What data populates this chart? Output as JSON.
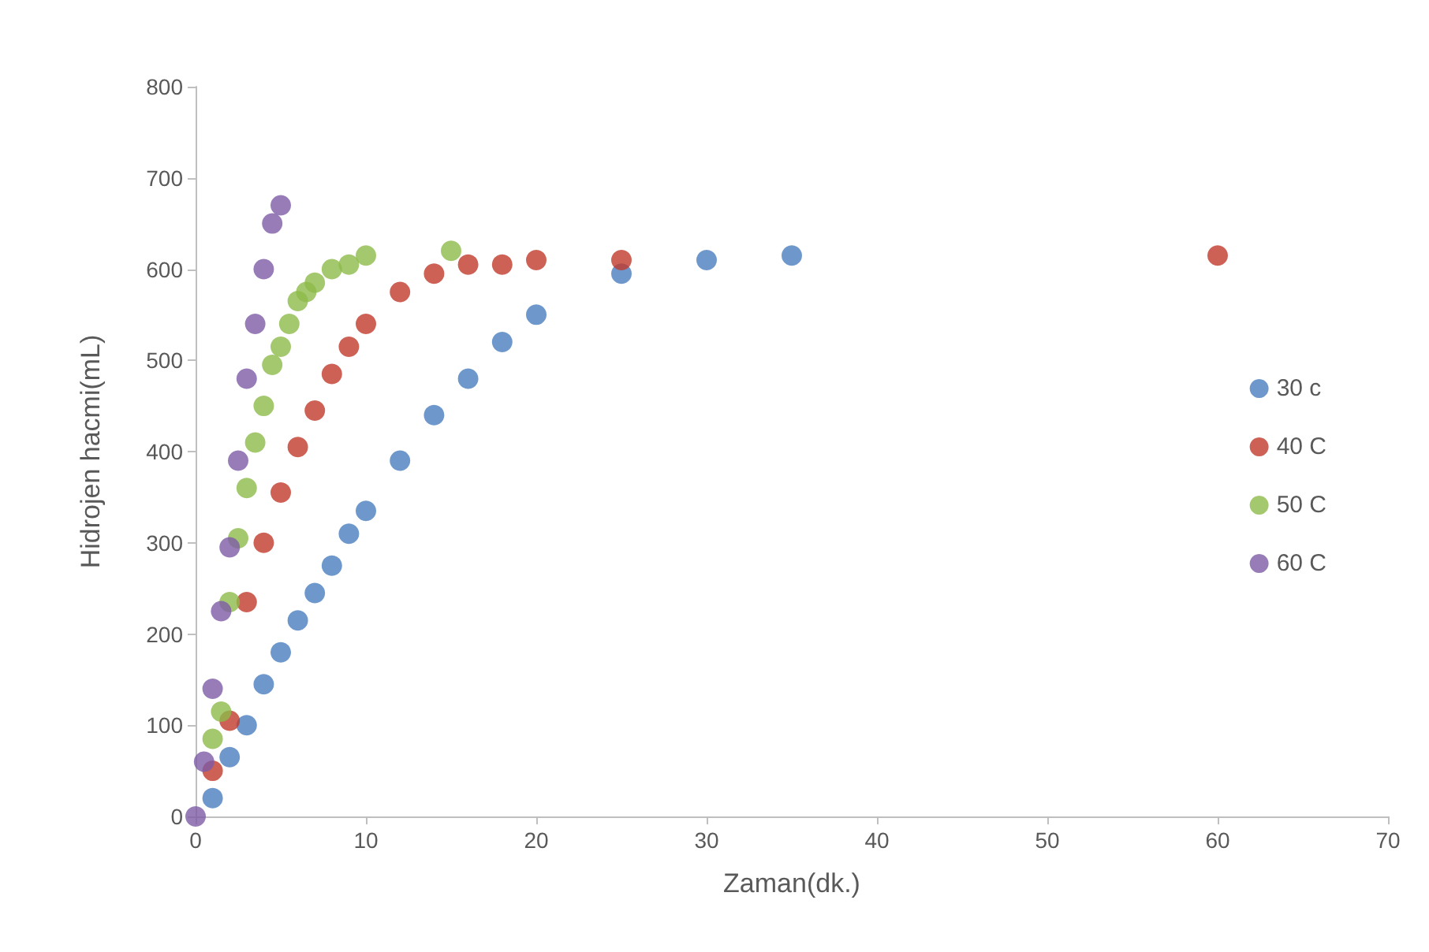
{
  "chart_data": {
    "type": "scatter",
    "xlabel": "Zaman(dk.)",
    "ylabel": "Hidrojen hacmi(mL)",
    "xlim": [
      0,
      70
    ],
    "xticks": [
      0,
      10,
      20,
      30,
      40,
      50,
      60,
      70
    ],
    "ylim": [
      0,
      800
    ],
    "yticks": [
      0,
      100,
      200,
      300,
      400,
      500,
      600,
      700,
      800
    ],
    "grid": false,
    "legend": "right",
    "marker": "circle",
    "series": [
      {
        "name": "30 c",
        "color": "#4a7ebf",
        "x": [
          1,
          2,
          3,
          4,
          5,
          6,
          7,
          8,
          9,
          10,
          12,
          14,
          16,
          18,
          20,
          25,
          30,
          35
        ],
        "values": [
          20,
          65,
          100,
          145,
          180,
          215,
          245,
          275,
          310,
          335,
          390,
          440,
          480,
          520,
          550,
          595,
          610,
          615
        ]
      },
      {
        "name": "40 C",
        "color": "#c0392b",
        "x": [
          1,
          2,
          3,
          4,
          5,
          6,
          7,
          8,
          9,
          10,
          12,
          14,
          16,
          18,
          20,
          25,
          60
        ],
        "values": [
          50,
          105,
          235,
          300,
          355,
          405,
          445,
          485,
          515,
          540,
          575,
          595,
          605,
          605,
          610,
          610,
          615
        ]
      },
      {
        "name": "50 C",
        "color": "#8dba4a",
        "x": [
          1,
          1.5,
          2,
          2.5,
          3,
          3.5,
          4,
          4.5,
          5,
          5.5,
          6,
          6.5,
          7,
          8,
          9,
          10,
          15
        ],
        "values": [
          85,
          115,
          235,
          305,
          360,
          410,
          450,
          495,
          515,
          540,
          565,
          575,
          585,
          600,
          605,
          615,
          620
        ]
      },
      {
        "name": "60 C",
        "color": "#7d5ba6",
        "x": [
          0,
          0.5,
          1,
          1.5,
          2,
          2.5,
          3,
          3.5,
          4,
          4.5,
          5
        ],
        "values": [
          0,
          60,
          140,
          225,
          295,
          390,
          480,
          540,
          600,
          650,
          670
        ]
      }
    ]
  }
}
